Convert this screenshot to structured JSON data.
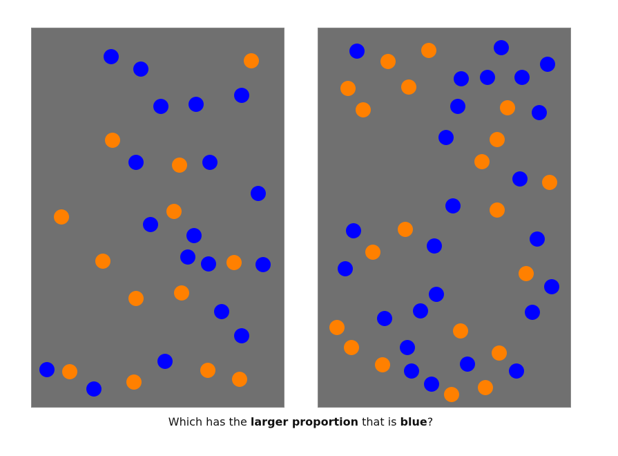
{
  "question": {
    "part1": "Which has the ",
    "bold1": "larger proportion",
    "part2": " that is ",
    "bold2": "blue",
    "part3": "?"
  },
  "colors": {
    "blue": "#0000ff",
    "orange": "#ff8000",
    "panel_background": "#707070"
  },
  "panels": [
    {
      "id": "left",
      "blue_count": 20,
      "orange_count": 15
    },
    {
      "id": "right",
      "blue_count": 26,
      "orange_count": 23
    }
  ]
}
